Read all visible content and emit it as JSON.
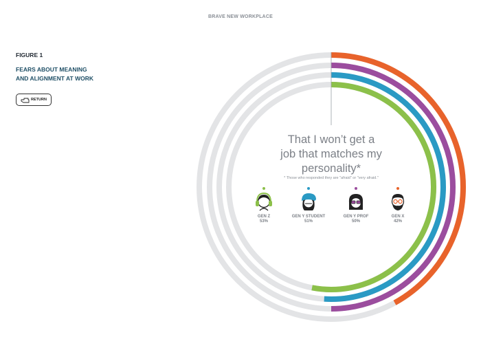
{
  "header": {
    "title": "BRAVE NEW WORKPLACE"
  },
  "figure": {
    "label": "FIGURE 1",
    "title_line1": "FEARS ABOUT MEANING",
    "title_line2": "AND ALIGNMENT AT WORK"
  },
  "return_button": {
    "label": "RETURN",
    "icon": "hand-pointer-icon"
  },
  "chart_data": {
    "type": "radial-bar",
    "title": "That I won't get a job that matches my personality*",
    "title_lines": [
      "That I won’t get a",
      "job that matches my",
      "personality*"
    ],
    "footnote": "* Those who responded they are \"afraid\" or \"very afraid.\"",
    "ylim": [
      0,
      100
    ],
    "series": [
      {
        "name": "GEN X",
        "label": "42%",
        "value": 42,
        "color": "#e8632b"
      },
      {
        "name": "GEN Y PROF",
        "label": "50%",
        "value": 50,
        "color": "#9b4d9e"
      },
      {
        "name": "GEN Y STUDENT",
        "label": "51%",
        "value": 51,
        "color": "#2a9ac4"
      },
      {
        "name": "GEN Z",
        "label": "53%",
        "value": 53,
        "color": "#8cc04a"
      }
    ],
    "track_color": "#e3e4e6"
  },
  "personas": [
    {
      "name": "GEN Z",
      "value": "53%",
      "color": "#8cc04a",
      "icon": "headphones-avatar-icon"
    },
    {
      "name": "GEN Y STUDENT",
      "value": "51%",
      "color": "#2a9ac4",
      "icon": "beanie-avatar-icon"
    },
    {
      "name": "GEN Y PROF",
      "value": "50%",
      "color": "#9b4d9e",
      "icon": "glasses-avatar-icon"
    },
    {
      "name": "GEN X",
      "value": "42%",
      "color": "#e8632b",
      "icon": "beard-avatar-icon"
    }
  ]
}
